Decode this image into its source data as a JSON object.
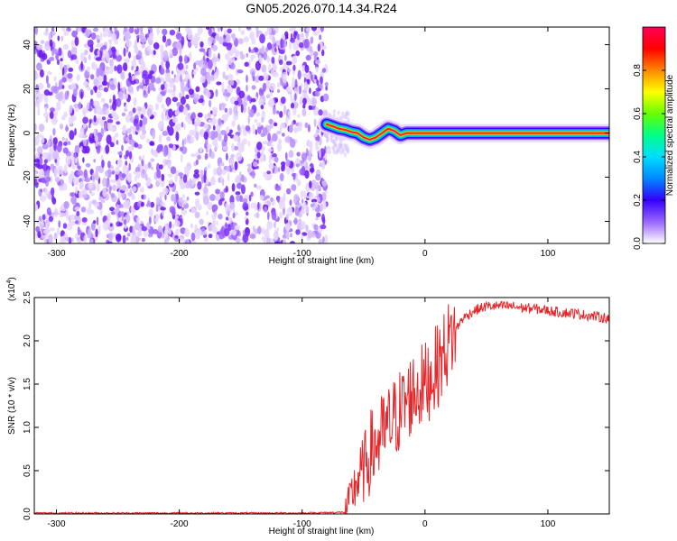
{
  "chart_data": [
    {
      "type": "heatmap",
      "title": "GN05.2026.070.14.34.R24",
      "xlabel": "Height of straight line (km)",
      "ylabel": "Frequency (Hz)",
      "xlim": [
        -318,
        150
      ],
      "ylim": [
        -50,
        48
      ],
      "xticks": [
        -300,
        -200,
        -100,
        0,
        100
      ],
      "yticks": [
        -40,
        -20,
        0,
        20,
        40
      ],
      "grid": false,
      "noise_region_x": [
        -318,
        -80
      ],
      "signal_track": {
        "x": [
          -80,
          -75,
          -70,
          -65,
          -60,
          -55,
          -50,
          -45,
          -40,
          -35,
          -30,
          -25,
          -20,
          -15,
          -10,
          0,
          20,
          40,
          60,
          80,
          100,
          120,
          150
        ],
        "y": [
          4,
          3,
          2,
          1.5,
          0.5,
          0,
          -2,
          -3,
          -2,
          0,
          2,
          1,
          -1,
          0,
          0,
          0,
          0,
          0,
          0,
          0,
          0,
          0,
          0
        ]
      },
      "colorbar": {
        "label": "Normalized spectral amplitude",
        "range": [
          0,
          1
        ],
        "ticks": [
          0.0,
          0.2,
          0.4,
          0.6,
          0.8
        ],
        "tick_labels": [
          "0.0",
          "0.2",
          "0.4",
          "0.6",
          "0.8"
        ],
        "colors": [
          "#ffffff",
          "#9966ff",
          "#3300ff",
          "#0088ff",
          "#00ddff",
          "#00ff88",
          "#66ff00",
          "#ffff00",
          "#ff8800",
          "#ff0000",
          "#ff0055"
        ]
      }
    },
    {
      "type": "line",
      "xlabel": "Height of straight line (km)",
      "ylabel": "SNR (10 * v/v)",
      "scale_label": "(x10",
      "scale_exponent": "4",
      "scale_close": ")",
      "xlim": [
        -318,
        150
      ],
      "ylim": [
        0,
        2.5
      ],
      "xticks": [
        -300,
        -200,
        -100,
        0,
        100
      ],
      "yticks": [
        0.0,
        0.5,
        1.0,
        1.5,
        2.0,
        2.5
      ],
      "ytick_labels": [
        "0.0",
        "0.5",
        "1.0",
        "1.5",
        "2.0",
        "2.5"
      ],
      "grid": false,
      "series": [
        {
          "color": "#e8262a",
          "x": [
            -318,
            -200,
            -100,
            -65,
            -60,
            -55,
            -50,
            -45,
            -40,
            -35,
            -30,
            -25,
            -20,
            -15,
            -10,
            -5,
            0,
            10,
            20,
            30,
            40,
            50,
            60,
            70,
            80,
            90,
            100,
            110,
            120,
            130,
            140,
            150
          ],
          "y": [
            0.01,
            0.01,
            0.01,
            0.02,
            0.2,
            0.4,
            0.5,
            0.7,
            0.8,
            0.9,
            1.0,
            1.1,
            1.2,
            1.3,
            1.4,
            1.45,
            1.5,
            1.7,
            2.0,
            2.25,
            2.35,
            2.4,
            2.4,
            2.4,
            2.38,
            2.37,
            2.35,
            2.33,
            2.32,
            2.3,
            2.28,
            2.26
          ]
        }
      ]
    }
  ]
}
